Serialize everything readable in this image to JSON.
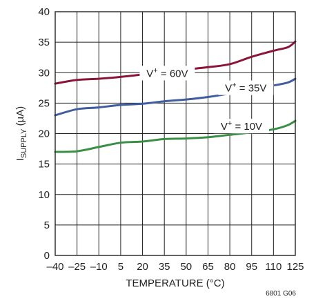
{
  "chart_data": {
    "type": "line",
    "xlabel": "TEMPERATURE (°C)",
    "ylabel": {
      "main": "I",
      "sub": "SUPPLY",
      "unit": " (µA)"
    },
    "xlim": [
      -40,
      125
    ],
    "ylim": [
      0,
      40
    ],
    "grid": true,
    "x_ticks": [
      "–40",
      "–25",
      "–10",
      "5",
      "20",
      "35",
      "50",
      "65",
      "80",
      "95",
      "110",
      "125"
    ],
    "x_tick_values": [
      -40,
      -25,
      -10,
      5,
      20,
      35,
      50,
      65,
      80,
      95,
      110,
      125
    ],
    "y_ticks": [
      0,
      5,
      10,
      15,
      20,
      25,
      30,
      35,
      40
    ],
    "series": [
      {
        "name": "V+ = 60V",
        "label_main": "V",
        "label_sup": "+",
        "label_rest": " = 60V",
        "color": "#8b1538",
        "label_x": 37,
        "label_y": 29.3,
        "x": [
          -40,
          -25,
          -10,
          5,
          20,
          35,
          50,
          65,
          80,
          95,
          110,
          120,
          125
        ],
        "y": [
          28.2,
          28.8,
          29.0,
          29.3,
          29.7,
          30.1,
          30.5,
          30.9,
          31.4,
          32.6,
          33.6,
          34.2,
          35.1
        ]
      },
      {
        "name": "V+ = 35V",
        "label_main": "V",
        "label_sup": "+",
        "label_rest": " = 35V",
        "color": "#3f5d9f",
        "label_x": 91,
        "label_y": 26.9,
        "x": [
          -40,
          -25,
          -10,
          5,
          20,
          35,
          50,
          65,
          80,
          95,
          110,
          120,
          125
        ],
        "y": [
          23.0,
          24.0,
          24.3,
          24.7,
          24.9,
          25.3,
          25.6,
          26.0,
          26.6,
          27.4,
          27.9,
          28.4,
          29.0
        ]
      },
      {
        "name": "V+ = 10V",
        "label_main": "V",
        "label_sup": "+",
        "label_rest": " = 10V",
        "color": "#3a8f47",
        "label_x": 88,
        "label_y": 20.6,
        "x": [
          -40,
          -25,
          -10,
          5,
          20,
          35,
          50,
          65,
          80,
          95,
          110,
          120,
          125
        ],
        "y": [
          17.0,
          17.1,
          17.8,
          18.5,
          18.7,
          19.1,
          19.2,
          19.4,
          19.8,
          20.2,
          20.7,
          21.4,
          22.1
        ]
      }
    ],
    "figure_id": "6801 G06"
  }
}
